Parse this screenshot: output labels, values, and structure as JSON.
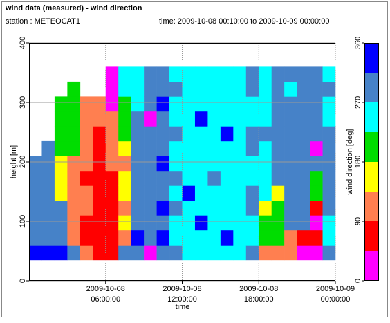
{
  "chart_data": {
    "type": "heatmap",
    "title": "wind data (measured) - wind direction",
    "station": "station : METEOCAT1",
    "time_range": "time: 2009-10-08 00:10:00 to 2009-10-09 00:00:00",
    "xlabel": "time",
    "ylabel": "height [m]",
    "colorbar_label": "wind direction [deg]",
    "xlim": [
      0,
      24
    ],
    "ylim": [
      0,
      400
    ],
    "xticks": [
      {
        "value": 6,
        "label": [
          "2009-10-08",
          "06:00:00"
        ]
      },
      {
        "value": 12,
        "label": [
          "2009-10-08",
          "12:00:00"
        ]
      },
      {
        "value": 18,
        "label": [
          "2009-10-08",
          "18:00:00"
        ]
      },
      {
        "value": 24,
        "label": [
          "2009-10-09",
          "00:00:00"
        ]
      }
    ],
    "yticks": [
      0,
      100,
      200,
      300,
      400
    ],
    "grid": true,
    "xbins": [
      0,
      1,
      2,
      3,
      4,
      5,
      6,
      7,
      8,
      9,
      10,
      11,
      12,
      13,
      14,
      15,
      16,
      17,
      18,
      19,
      20,
      21,
      22,
      23,
      24
    ],
    "ybins": [
      35,
      60,
      85,
      110,
      135,
      160,
      185,
      210,
      235,
      260,
      285,
      310,
      335,
      360
    ],
    "values": [
      [
        330,
        290,
        290,
        290,
        290,
        290,
        290,
        null,
        null,
        null,
        null,
        null,
        null
      ],
      [
        330,
        290,
        290,
        290,
        290,
        290,
        290,
        290,
        null,
        null,
        null,
        null,
        null
      ],
      [
        330,
        290,
        290,
        290,
        160,
        160,
        160,
        200,
        200,
        200,
        200,
        null,
        null
      ],
      [
        290,
        120,
        120,
        120,
        120,
        120,
        120,
        200,
        200,
        200,
        200,
        200,
        null
      ],
      [
        120,
        70,
        70,
        120,
        120,
        70,
        120,
        120,
        120,
        120,
        120,
        null,
        null
      ],
      [
        70,
        70,
        70,
        70,
        70,
        70,
        70,
        70,
        70,
        120,
        120,
        null,
        null
      ],
      [
        70,
        70,
        70,
        70,
        70,
        70,
        120,
        120,
        120,
        120,
        20,
        20,
        20
      ],
      [
        290,
        120,
        160,
        120,
        160,
        160,
        120,
        160,
        200,
        200,
        200,
        250,
        250
      ],
      [
        290,
        330,
        290,
        290,
        290,
        290,
        290,
        290,
        290,
        290,
        250,
        250,
        250
      ],
      [
        20,
        290,
        290,
        290,
        290,
        290,
        290,
        290,
        290,
        20,
        290,
        290,
        290
      ],
      [
        290,
        330,
        290,
        330,
        290,
        290,
        330,
        290,
        290,
        290,
        330,
        290,
        290
      ],
      [
        290,
        250,
        250,
        290,
        250,
        290,
        250,
        250,
        290,
        250,
        250,
        290,
        250
      ],
      [
        250,
        250,
        250,
        250,
        330,
        250,
        250,
        250,
        250,
        250,
        250,
        250,
        250
      ],
      [
        250,
        250,
        330,
        250,
        250,
        250,
        250,
        250,
        250,
        330,
        250,
        250,
        250
      ],
      [
        250,
        250,
        250,
        250,
        250,
        290,
        250,
        250,
        250,
        250,
        250,
        250,
        250
      ],
      [
        250,
        330,
        250,
        250,
        250,
        250,
        250,
        250,
        330,
        250,
        250,
        250,
        250
      ],
      [
        250,
        250,
        250,
        250,
        250,
        250,
        250,
        250,
        250,
        250,
        250,
        250,
        250
      ],
      [
        290,
        250,
        250,
        290,
        290,
        250,
        250,
        290,
        290,
        250,
        250,
        290,
        290
      ],
      [
        120,
        200,
        200,
        160,
        250,
        250,
        250,
        250,
        290,
        250,
        250,
        250,
        250
      ],
      [
        120,
        200,
        200,
        200,
        160,
        290,
        290,
        290,
        290,
        290,
        290,
        290,
        290
      ],
      [
        120,
        120,
        290,
        290,
        290,
        290,
        290,
        290,
        290,
        290,
        290,
        250,
        290
      ],
      [
        20,
        70,
        290,
        290,
        290,
        290,
        290,
        290,
        290,
        290,
        290,
        290,
        290
      ],
      [
        20,
        70,
        20,
        70,
        200,
        200,
        290,
        20,
        290,
        290,
        290,
        290,
        290
      ],
      [
        290,
        250,
        250,
        290,
        290,
        290,
        290,
        290,
        290,
        250,
        250,
        290,
        250
      ]
    ],
    "color_bounds": [
      0,
      45,
      90,
      135,
      180,
      225,
      270,
      315,
      360
    ],
    "colors": [
      "#ff00ff",
      "#ff0000",
      "#ff7f50",
      "#ffff00",
      "#00dd00",
      "#00ffff",
      "#4682c8",
      "#0000ff"
    ],
    "colorbar_ticks": [
      0,
      90,
      180,
      270,
      360
    ]
  }
}
